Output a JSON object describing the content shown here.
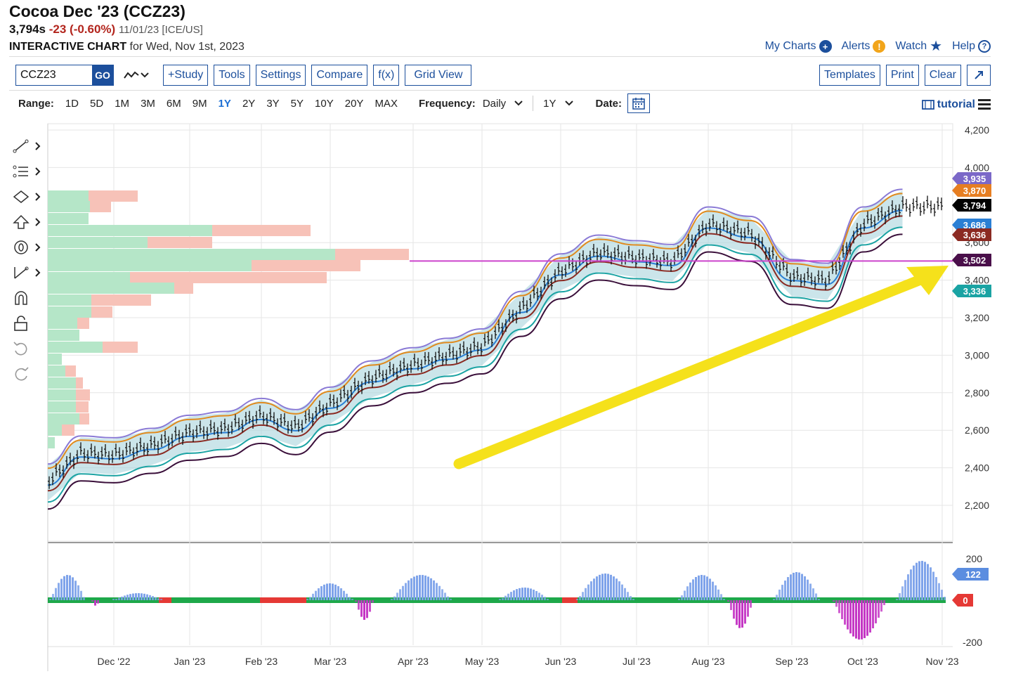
{
  "header": {
    "title": "Cocoa Dec '23 (CCZ23)",
    "last": "3,794s",
    "change": "-23 (-0.60%)",
    "meta": "11/01/23 [ICE/US]",
    "sub_bold": "INTERACTIVE CHART",
    "sub_rest": " for Wed, Nov 1st, 2023",
    "links": {
      "my_charts": "My Charts",
      "alerts": "Alerts",
      "watch": "Watch",
      "help": "Help"
    }
  },
  "toolbar": {
    "symbol_value": "CCZ23",
    "go_label": "GO",
    "study": "+Study",
    "tools": "Tools",
    "settings": "Settings",
    "compare": "Compare",
    "fx": "f(x)",
    "grid_view": "Grid View",
    "templates": "Templates",
    "print": "Print",
    "clear": "Clear"
  },
  "rangebar": {
    "range_label": "Range:",
    "ranges": [
      "1D",
      "5D",
      "1M",
      "3M",
      "6M",
      "9M",
      "1Y",
      "2Y",
      "3Y",
      "5Y",
      "10Y",
      "20Y",
      "MAX"
    ],
    "active_range": "1Y",
    "frequency_label": "Frequency:",
    "frequency_value": "Daily",
    "period_value": "1Y",
    "date_label": "Date:",
    "tutorial": "tutorial"
  },
  "chart_data": {
    "type": "line",
    "x_labels": [
      "Dec '22",
      "Jan '23",
      "Feb '23",
      "Mar '23",
      "Apr '23",
      "May '23",
      "Jun '23",
      "Jul '23",
      "Aug '23",
      "Sep '23",
      "Oct '23",
      "Nov '23"
    ],
    "y_ticks": [
      2200,
      2400,
      2600,
      2800,
      3000,
      3200,
      3400,
      3600,
      4000,
      4200
    ],
    "ylim": [
      2000,
      4200
    ],
    "price_series": {
      "month_index": [
        0,
        0.5,
        1,
        1.5,
        2,
        2.5,
        3,
        3.5,
        4,
        4.5,
        5,
        5.5,
        6,
        6.5,
        7,
        7.5,
        8,
        8.5,
        9,
        9.5,
        10,
        10.5,
        11,
        11.5
      ],
      "close": [
        2330,
        2480,
        2470,
        2520,
        2590,
        2610,
        2680,
        2620,
        2740,
        2880,
        2950,
        3000,
        3050,
        3250,
        3450,
        3550,
        3520,
        3500,
        3700,
        3650,
        3420,
        3400,
        3700,
        3794
      ]
    },
    "horizontal_level": 3502,
    "price_tags": [
      {
        "value": "3,935",
        "color": "#7b68c8"
      },
      {
        "value": "3,870",
        "color": "#e67e22"
      },
      {
        "value": "3,794",
        "color": "#000000"
      },
      {
        "value": "3,686",
        "color": "#2a7fd4"
      },
      {
        "value": "3,636",
        "color": "#8b2a22"
      },
      {
        "value": "3,502",
        "color": "#4a0f4a"
      },
      {
        "value": "3,336",
        "color": "#1aa3a3"
      }
    ],
    "oscillator": {
      "y_ticks": [
        200,
        -200
      ],
      "tags": [
        {
          "value": "122",
          "color": "#5b8de0"
        },
        {
          "value": "0",
          "color": "#e53935"
        }
      ]
    }
  },
  "colors": {
    "accent": "#1c4f9c",
    "up": "#2e7d32",
    "down": "#b3261e",
    "arrow": "#f5e11b"
  }
}
